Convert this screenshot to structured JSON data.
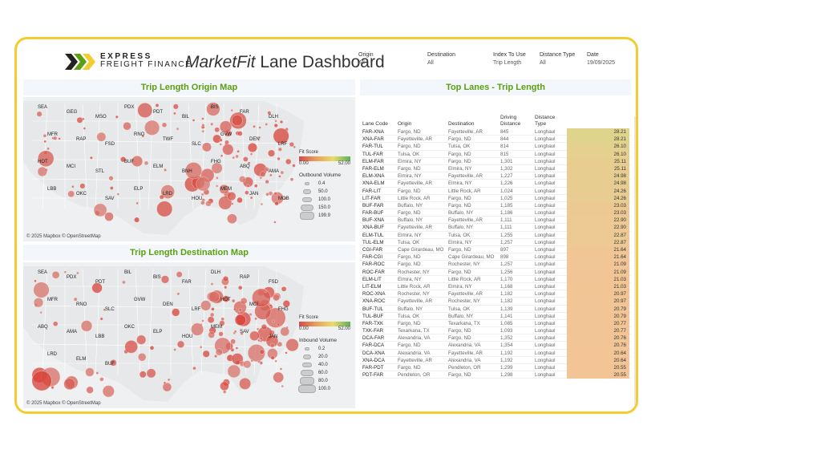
{
  "header": {
    "logo_line1": "EXPRESS",
    "logo_line2": "FREIGHT FINANCE",
    "title_italic": "MarketFit",
    "title_rest": " Lane Dashboard"
  },
  "filters": [
    {
      "label": "Origin",
      "value": "All"
    },
    {
      "label": "Destination",
      "value": "All"
    },
    {
      "label": "Index To Use",
      "value": "Trip Length"
    },
    {
      "label": "Distance Type",
      "value": "All"
    },
    {
      "label": "Date",
      "value": "19/09/2025"
    }
  ],
  "origin_map": {
    "title": "Trip Length Origin Map",
    "credit": "© 2025 Mapbox © OpenStreetMap",
    "fit_label": "Fit Score",
    "fit_min": "0.00",
    "fit_max": "52.00",
    "volume_label": "Outbound Volume",
    "volumes": [
      "0.4",
      "50.0",
      "100.0",
      "150.0",
      "199.9"
    ]
  },
  "dest_map": {
    "title": "Trip Length Destination Map",
    "credit": "© 2025 Mapbox © OpenStreetMap",
    "fit_label": "Fit Score",
    "fit_min": "0.00",
    "fit_max": "52.00",
    "volume_label": "Inbound Volume",
    "volumes": [
      "0.2",
      "20.0",
      "40.0",
      "60.0",
      "80.0",
      "100.0"
    ]
  },
  "cities_origin": [
    "SEA",
    "GEG",
    "MSO",
    "PDX",
    "PDT",
    "BIL",
    "BIS",
    "FAR",
    "DLH",
    "MFR",
    "RAP",
    "FSD",
    "RNO",
    "TWF",
    "SLC",
    "GVW",
    "DEN",
    "LRF",
    "HOT",
    "MCI",
    "STL",
    "BUF",
    "ELM",
    "BNH",
    "FHG",
    "ABQ",
    "AMA",
    "LBB",
    "OKC",
    "SAV",
    "ELP",
    "LRD",
    "HOU",
    "MEM",
    "JAN",
    "MOB"
  ],
  "cities_dest": [
    "SEA",
    "PDX",
    "PDT",
    "BIL",
    "BIS",
    "FAR",
    "DLH",
    "RAP",
    "FSD",
    "MFR",
    "RNO",
    "SLC",
    "GVW",
    "DEN",
    "LRF",
    "HOT",
    "MCI",
    "FHG",
    "ABQ",
    "AMA",
    "LBB",
    "OKC",
    "ELP",
    "HOU",
    "MEM",
    "SAV",
    "JAN",
    "LRD",
    "ELM",
    "BUF"
  ],
  "top_lanes": {
    "title": "Top Lanes - Trip Length",
    "headers": {
      "code": "Lane Code",
      "origin": "Origin",
      "destination": "Destination",
      "distance": "Driving Distance",
      "type": "Distance Type"
    },
    "rows": [
      {
        "code": "FAR-XNA",
        "origin": "Fargo, ND",
        "destination": "Fayetteville, AR",
        "distance": "845",
        "type": "Longhaul",
        "index": "28.21"
      },
      {
        "code": "XNA-FAR",
        "origin": "Fayetteville, AR",
        "destination": "Fargo, ND",
        "distance": "844",
        "type": "Longhaul",
        "index": "28.21"
      },
      {
        "code": "FAR-TUL",
        "origin": "Fargo, ND",
        "destination": "Tulsa, OK",
        "distance": "814",
        "type": "Longhaul",
        "index": "26.10"
      },
      {
        "code": "TUL-FAR",
        "origin": "Tulsa, OK",
        "destination": "Fargo, ND",
        "distance": "815",
        "type": "Longhaul",
        "index": "26.10"
      },
      {
        "code": "ELM-FAR",
        "origin": "Elmira, NY",
        "destination": "Fargo, ND",
        "distance": "1,301",
        "type": "Longhaul",
        "index": "25.11"
      },
      {
        "code": "FAR-ELM",
        "origin": "Fargo, ND",
        "destination": "Elmira, NY",
        "distance": "1,302",
        "type": "Longhaul",
        "index": "25.11"
      },
      {
        "code": "ELM-XNA",
        "origin": "Elmira, NY",
        "destination": "Fayetteville, AR",
        "distance": "1,227",
        "type": "Longhaul",
        "index": "24.98"
      },
      {
        "code": "XNA-ELM",
        "origin": "Fayetteville, AR",
        "destination": "Elmira, NY",
        "distance": "1,226",
        "type": "Longhaul",
        "index": "24.98"
      },
      {
        "code": "FAR-LIT",
        "origin": "Fargo, ND",
        "destination": "Little Rock, AR",
        "distance": "1,024",
        "type": "Longhaul",
        "index": "24.26"
      },
      {
        "code": "LIT-FAR",
        "origin": "Little Rock, AR",
        "destination": "Fargo, ND",
        "distance": "1,025",
        "type": "Longhaul",
        "index": "24.26"
      },
      {
        "code": "BUF-FAR",
        "origin": "Buffalo, NY",
        "destination": "Fargo, ND",
        "distance": "1,185",
        "type": "Longhaul",
        "index": "23.03"
      },
      {
        "code": "FAR-BUF",
        "origin": "Fargo, ND",
        "destination": "Buffalo, NY",
        "distance": "1,186",
        "type": "Longhaul",
        "index": "23.03"
      },
      {
        "code": "BUF-XNA",
        "origin": "Buffalo, NY",
        "destination": "Fayetteville, AR",
        "distance": "1,111",
        "type": "Longhaul",
        "index": "22.90"
      },
      {
        "code": "XNA-BUF",
        "origin": "Fayetteville, AR",
        "destination": "Buffalo, NY",
        "distance": "1,111",
        "type": "Longhaul",
        "index": "22.90"
      },
      {
        "code": "ELM-TUL",
        "origin": "Elmira, NY",
        "destination": "Tulsa, OK",
        "distance": "1,255",
        "type": "Longhaul",
        "index": "22.87"
      },
      {
        "code": "TUL-ELM",
        "origin": "Tulsa, OK",
        "destination": "Elmira, NY",
        "distance": "1,257",
        "type": "Longhaul",
        "index": "22.87"
      },
      {
        "code": "CGI-FAR",
        "origin": "Cape Girardeau, MO",
        "destination": "Fargo, ND",
        "distance": "897",
        "type": "Longhaul",
        "index": "21.64"
      },
      {
        "code": "FAR-CGI",
        "origin": "Fargo, ND",
        "destination": "Cape Girardeau, MO",
        "distance": "898",
        "type": "Longhaul",
        "index": "21.64"
      },
      {
        "code": "FAR-ROC",
        "origin": "Fargo, ND",
        "destination": "Rochester, NY",
        "distance": "1,257",
        "type": "Longhaul",
        "index": "21.09"
      },
      {
        "code": "ROC-FAR",
        "origin": "Rochester, NY",
        "destination": "Fargo, ND",
        "distance": "1,256",
        "type": "Longhaul",
        "index": "21.09"
      },
      {
        "code": "ELM-LIT",
        "origin": "Elmira, NY",
        "destination": "Little Rock, AR",
        "distance": "1,170",
        "type": "Longhaul",
        "index": "21.03"
      },
      {
        "code": "LIT-ELM",
        "origin": "Little Rock, AR",
        "destination": "Elmira, NY",
        "distance": "1,168",
        "type": "Longhaul",
        "index": "21.03"
      },
      {
        "code": "ROC-XNA",
        "origin": "Rochester, NY",
        "destination": "Fayetteville, AR",
        "distance": "1,182",
        "type": "Longhaul",
        "index": "20.97"
      },
      {
        "code": "XNA-ROC",
        "origin": "Fayetteville, AR",
        "destination": "Rochester, NY",
        "distance": "1,182",
        "type": "Longhaul",
        "index": "20.97"
      },
      {
        "code": "BUF-TUL",
        "origin": "Buffalo, NY",
        "destination": "Tulsa, OK",
        "distance": "1,139",
        "type": "Longhaul",
        "index": "20.79"
      },
      {
        "code": "TUL-BUF",
        "origin": "Tulsa, OK",
        "destination": "Buffalo, NY",
        "distance": "1,141",
        "type": "Longhaul",
        "index": "20.79"
      },
      {
        "code": "FAR-TXK",
        "origin": "Fargo, ND",
        "destination": "Texarkana, TX",
        "distance": "1,085",
        "type": "Longhaul",
        "index": "20.77"
      },
      {
        "code": "TXK-FAR",
        "origin": "Texarkana, TX",
        "destination": "Fargo, ND",
        "distance": "1,093",
        "type": "Longhaul",
        "index": "20.77"
      },
      {
        "code": "DCA-FAR",
        "origin": "Alexandria, VA",
        "destination": "Fargo, ND",
        "distance": "1,352",
        "type": "Longhaul",
        "index": "20.76"
      },
      {
        "code": "FAR-DCA",
        "origin": "Fargo, ND",
        "destination": "Alexandria, VA",
        "distance": "1,354",
        "type": "Longhaul",
        "index": "20.76"
      },
      {
        "code": "DCA-XNA",
        "origin": "Alexandria, VA",
        "destination": "Fayetteville, AR",
        "distance": "1,192",
        "type": "Longhaul",
        "index": "20.64"
      },
      {
        "code": "XNA-DCA",
        "origin": "Fayetteville, AR",
        "destination": "Alexandria, VA",
        "distance": "1,192",
        "type": "Longhaul",
        "index": "20.64"
      },
      {
        "code": "FAR-PDT",
        "origin": "Fargo, ND",
        "destination": "Pendleton, OR",
        "distance": "1,299",
        "type": "Longhaul",
        "index": "20.55"
      },
      {
        "code": "PDT-FAR",
        "origin": "Pendleton, OR",
        "destination": "Fargo, ND",
        "distance": "1,298",
        "type": "Longhaul",
        "index": "20.55"
      }
    ]
  }
}
